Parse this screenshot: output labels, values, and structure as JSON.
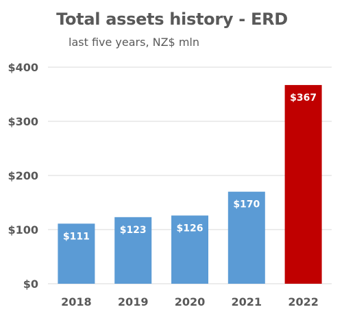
{
  "chart": {
    "title": "Total assets history - ERD",
    "subtitle": "last five years, NZ$ mln"
  },
  "colors": {
    "bar": "#5b9bd5",
    "highlight": "#c00000",
    "grid": "#d9d9d9",
    "text": "#595959"
  },
  "chart_data": {
    "type": "bar",
    "title": "Total assets history - ERD",
    "subtitle": "last five years, NZ$ mln",
    "categories": [
      "2018",
      "2019",
      "2020",
      "2021",
      "2022"
    ],
    "values": [
      111,
      123,
      126,
      170,
      367
    ],
    "value_labels": [
      "$111",
      "$123",
      "$126",
      "$170",
      "$367"
    ],
    "highlight_index": 4,
    "ylim": [
      0,
      400
    ],
    "yticks": [
      0,
      100,
      200,
      300,
      400
    ],
    "ytick_labels": [
      "$0",
      "$100",
      "$200",
      "$300",
      "$400"
    ],
    "grid": true,
    "xlabel": "",
    "ylabel": ""
  }
}
